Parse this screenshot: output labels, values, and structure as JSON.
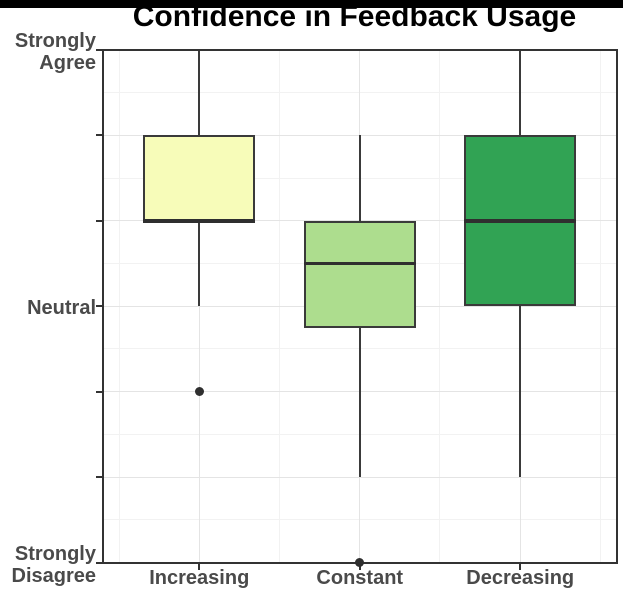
{
  "chart_data": {
    "type": "boxplot",
    "title": "Confidence in Feedback Usage",
    "categories": [
      "Increasing",
      "Constant",
      "Decreasing"
    ],
    "y_axis": {
      "min": 1,
      "max": 7,
      "tick_values": [
        1,
        2,
        3,
        4,
        5,
        6,
        7
      ],
      "labeled_ticks": [
        {
          "value": 7,
          "lines": [
            "Strongly",
            "Agree"
          ]
        },
        {
          "value": 4,
          "lines": [
            "Neutral"
          ]
        },
        {
          "value": 1,
          "lines": [
            "Strongly",
            "Disagree"
          ]
        }
      ]
    },
    "series": [
      {
        "category": "Increasing",
        "fill": "#f7fcb9",
        "q1": 5,
        "median": 5,
        "q3": 6,
        "whisker_low": 4,
        "whisker_high": 7,
        "outliers": [
          3
        ]
      },
      {
        "category": "Constant",
        "fill": "#addd8e",
        "q1": 3.75,
        "median": 4.5,
        "q3": 5,
        "whisker_low": 2,
        "whisker_high": 6,
        "outliers": [
          1
        ]
      },
      {
        "category": "Decreasing",
        "fill": "#31a354",
        "q1": 4,
        "median": 5,
        "q3": 6,
        "whisker_low": 2,
        "whisker_high": 7,
        "outliers": []
      }
    ],
    "colors": {
      "box_border": "#3a3a3a",
      "median": "#2f2f2f",
      "whisker": "#3a3a3a",
      "outlier": "#2f2f2f",
      "panel_border": "#333333",
      "grid_major": "#e4e4e4",
      "grid_minor": "#f2f2f2",
      "axis_text": "#4a4a4a",
      "tick_mark": "#333333",
      "title_color": "#000000",
      "top_bar": "#000000",
      "background": "#ffffff"
    },
    "layout_hints": {
      "grid": true,
      "legend": false,
      "orientation": "vertical"
    }
  }
}
